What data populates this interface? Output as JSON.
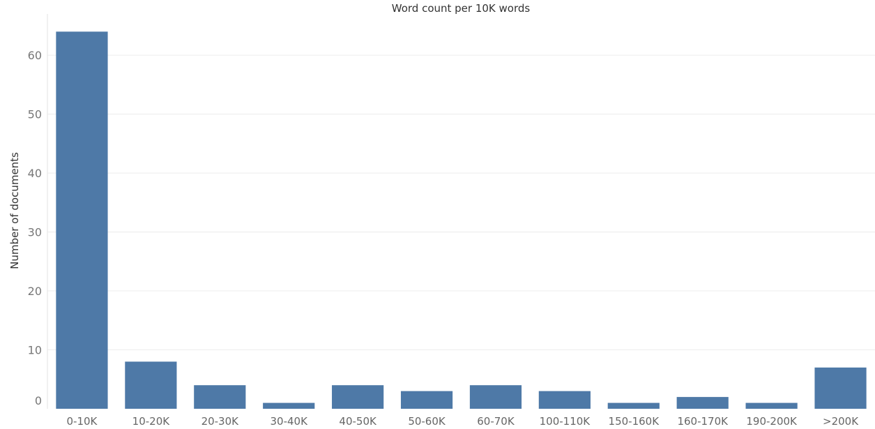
{
  "chart_data": {
    "type": "bar",
    "title": "Word count per 10K words",
    "xlabel": "",
    "ylabel": "Number of documents",
    "categories": [
      "0-10K",
      "10-20K",
      "20-30K",
      "30-40K",
      "40-50K",
      "50-60K",
      "60-70K",
      "100-110K",
      "150-160K",
      "160-170K",
      "190-200K",
      ">200K"
    ],
    "values": [
      64,
      8,
      4,
      1,
      4,
      3,
      4,
      3,
      1,
      2,
      1,
      7
    ],
    "yticks": [
      0,
      10,
      20,
      30,
      40,
      50,
      60
    ],
    "ytick_labels": [
      "0",
      "10",
      "20",
      "30",
      "40",
      "50",
      "60"
    ],
    "ylim": [
      0,
      67
    ],
    "grid": true,
    "legend": "none",
    "bar_color": "#4e79a7"
  }
}
